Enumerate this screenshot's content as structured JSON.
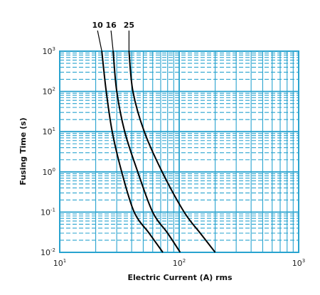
{
  "chart_data": {
    "type": "line",
    "xlabel": "Electric Current (A) rms",
    "ylabel": "Fusing Time (s)",
    "xscale": "log",
    "yscale": "log",
    "xlim": [
      10,
      1000
    ],
    "ylim": [
      0.01,
      1000
    ],
    "x_ticks": [
      {
        "base": "10",
        "exp": "1",
        "value": 10
      },
      {
        "base": "10",
        "exp": "2",
        "value": 100
      },
      {
        "base": "10",
        "exp": "3",
        "value": 1000
      }
    ],
    "y_ticks": [
      {
        "base": "10",
        "exp": "-2",
        "value": 0.01
      },
      {
        "base": "10",
        "exp": "-1",
        "value": 0.1
      },
      {
        "base": "10",
        "exp": "0",
        "value": 1
      },
      {
        "base": "10",
        "exp": "1",
        "value": 10
      },
      {
        "base": "10",
        "exp": "2",
        "value": 100
      },
      {
        "base": "10",
        "exp": "3",
        "value": 1000
      }
    ],
    "grid": true,
    "grid_color": "#29a3cf",
    "line_color": "#000000",
    "series": [
      {
        "name": "10",
        "points": [
          [
            22.5,
            1000
          ],
          [
            24.5,
            100
          ],
          [
            27.5,
            10
          ],
          [
            33,
            1
          ],
          [
            42,
            0.1
          ],
          [
            56,
            0.03
          ],
          [
            73,
            0.01
          ]
        ]
      },
      {
        "name": "16",
        "points": [
          [
            28,
            1000
          ],
          [
            30,
            100
          ],
          [
            35,
            10
          ],
          [
            45,
            1
          ],
          [
            60,
            0.1
          ],
          [
            80,
            0.03
          ],
          [
            102,
            0.01
          ]
        ]
      },
      {
        "name": "25",
        "points": [
          [
            38,
            1000
          ],
          [
            41,
            100
          ],
          [
            51,
            10
          ],
          [
            72,
            1
          ],
          [
            110,
            0.1
          ],
          [
            150,
            0.03
          ],
          [
            200,
            0.01
          ]
        ]
      }
    ]
  }
}
